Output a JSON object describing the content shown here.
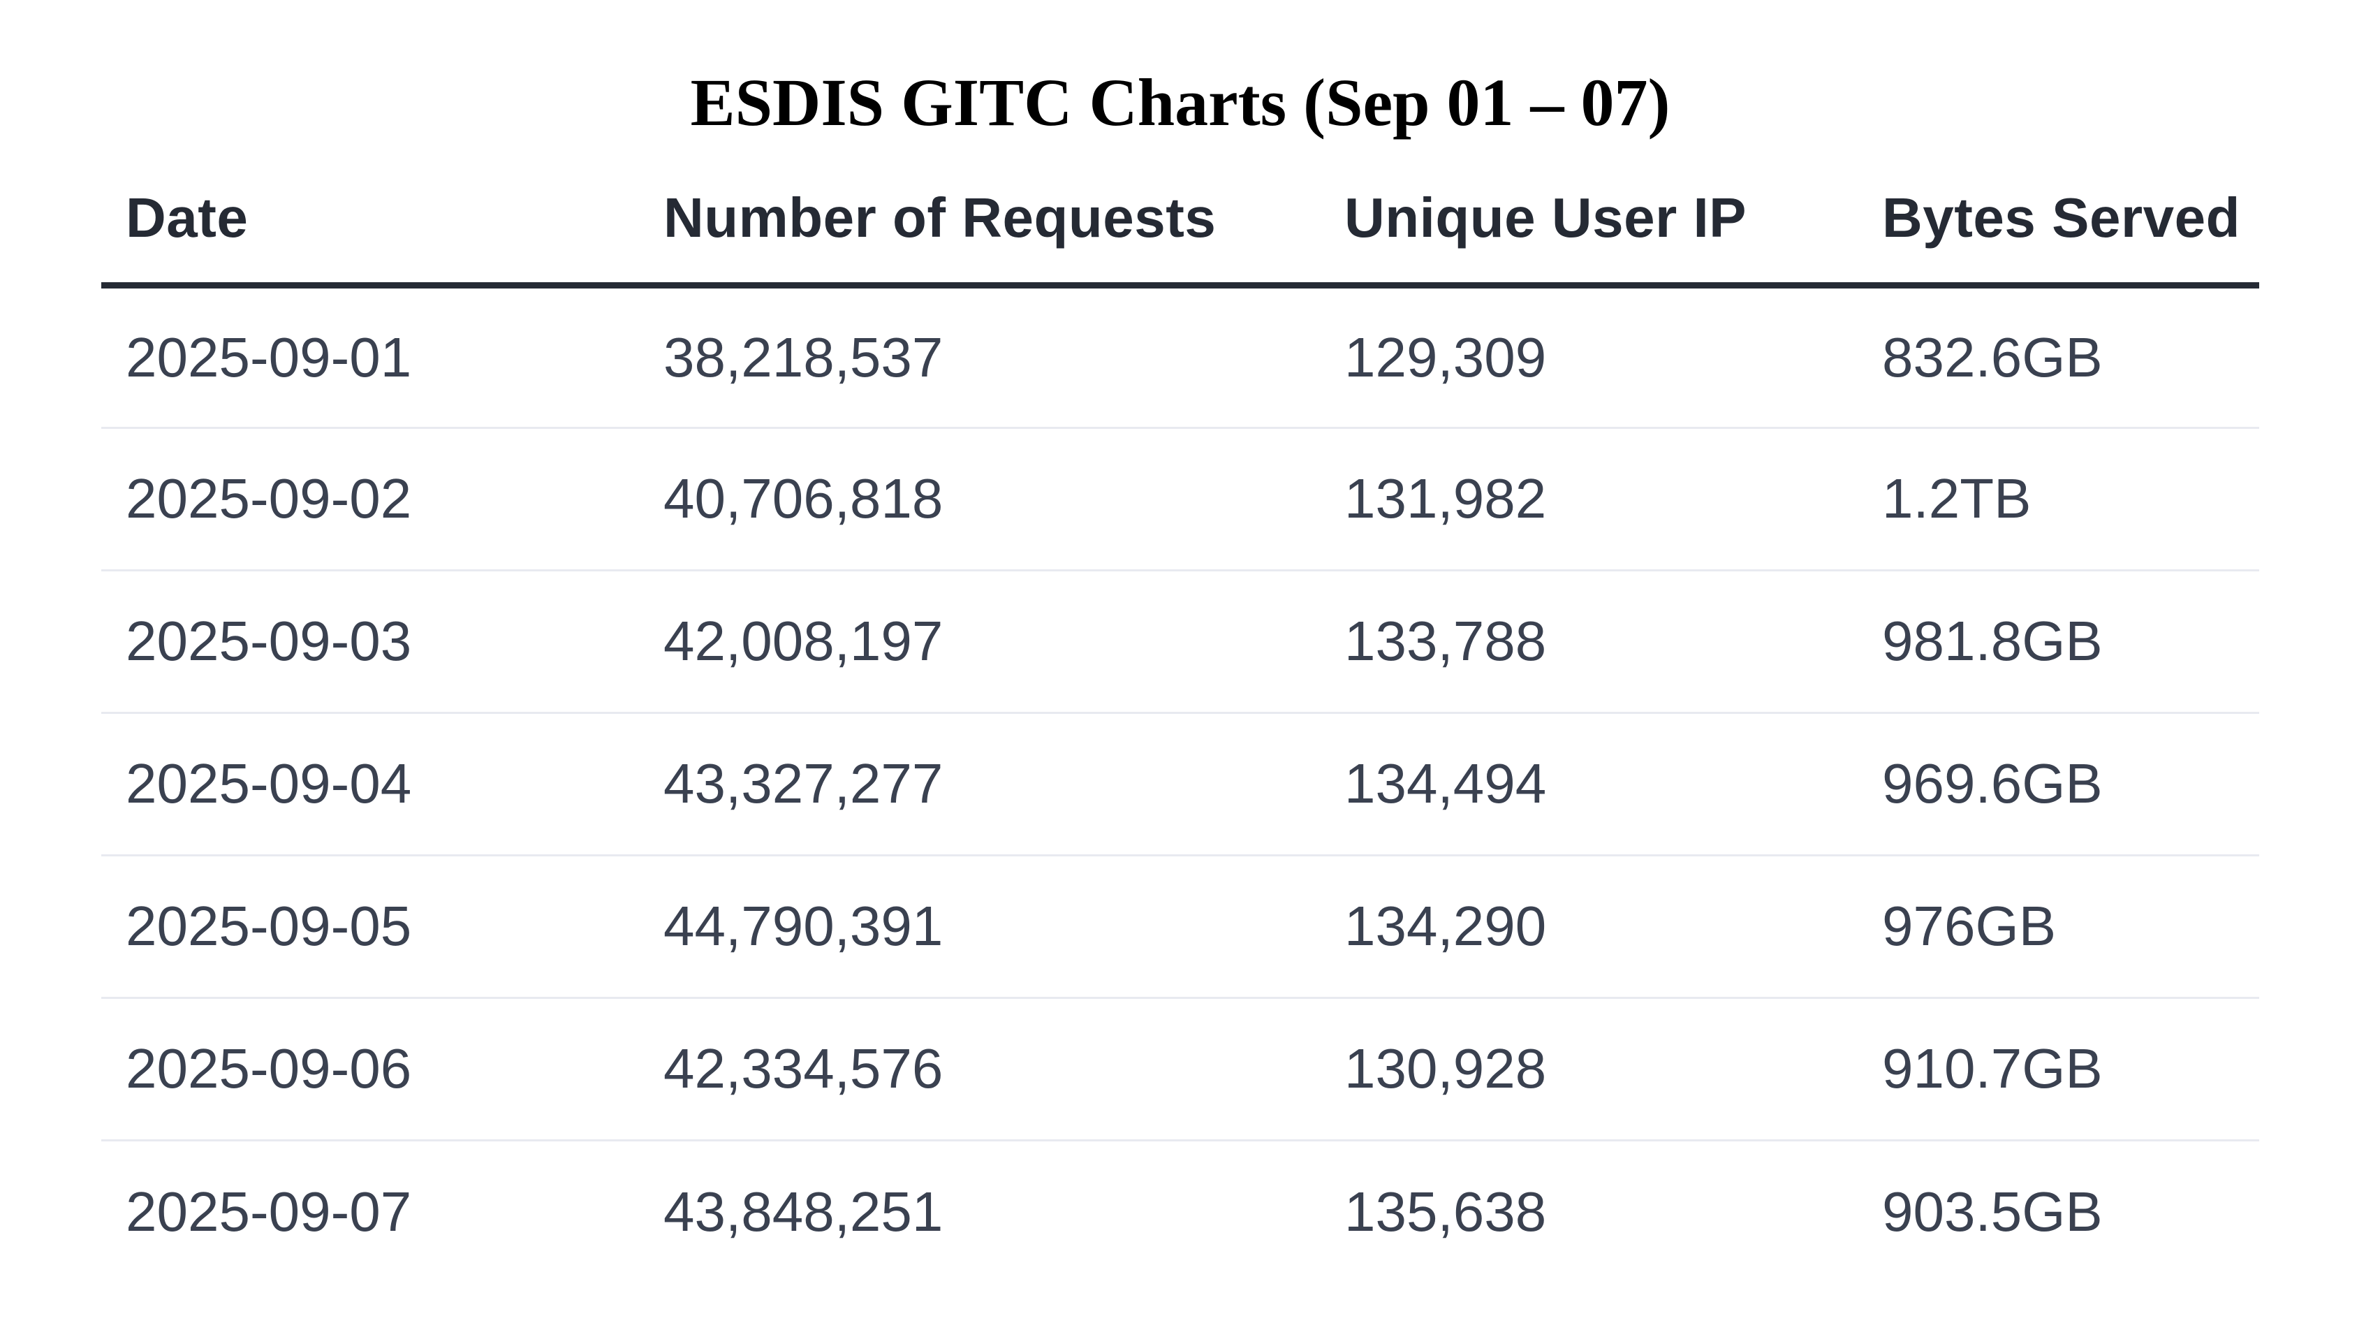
{
  "chart_data": {
    "type": "table",
    "title": "ESDIS GITC Charts (Sep 01 – 07)",
    "columns": [
      "Date",
      "Number of Requests",
      "Unique User IP",
      "Bytes Served"
    ],
    "rows": [
      [
        "2025-09-01",
        "38,218,537",
        "129,309",
        "832.6GB"
      ],
      [
        "2025-09-02",
        "40,706,818",
        "131,982",
        "1.2TB"
      ],
      [
        "2025-09-03",
        "42,008,197",
        "133,788",
        "981.8GB"
      ],
      [
        "2025-09-04",
        "43,327,277",
        "134,494",
        "969.6GB"
      ],
      [
        "2025-09-05",
        "44,790,391",
        "134,290",
        "976GB"
      ],
      [
        "2025-09-06",
        "42,334,576",
        "130,928",
        "910.7GB"
      ],
      [
        "2025-09-07",
        "43,848,251",
        "135,638",
        "903.5GB"
      ]
    ],
    "layout": {
      "grid": "horizontal row separators only",
      "header_rule": "thick dark line under header"
    }
  },
  "colors": {
    "background": "#ffffff",
    "title_text": "#000000",
    "header_text": "#252a34",
    "header_rule": "#252a34",
    "body_text": "#3a4150",
    "row_separator": "#e8eaf0"
  }
}
